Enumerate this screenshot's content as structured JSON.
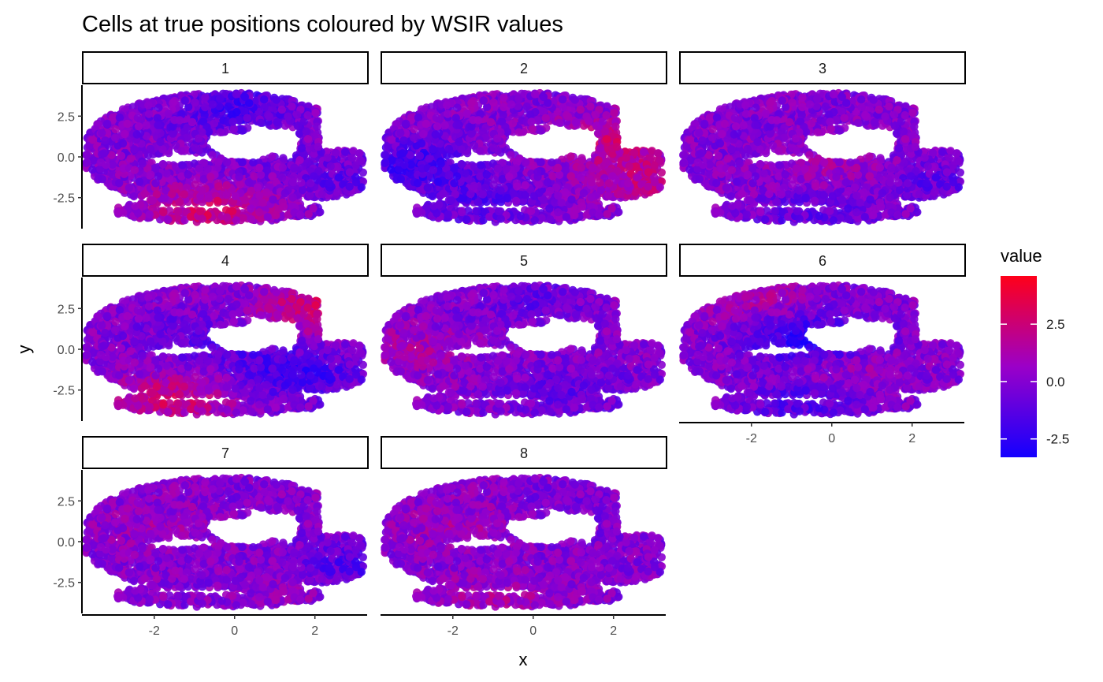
{
  "chart_data": {
    "type": "scatter",
    "title": "Cells at true positions coloured by WSIR values",
    "xlabel": "x",
    "ylabel": "y",
    "xlim": [
      -3.8,
      3.3
    ],
    "ylim": [
      -4.4,
      4.4
    ],
    "x_ticks": [
      -2,
      0,
      2
    ],
    "x_tick_labels": [
      "-2",
      "0",
      "2"
    ],
    "y_ticks": [
      -2.5,
      0,
      2.5
    ],
    "y_tick_labels": [
      "-2.5",
      "0.0",
      "2.5"
    ],
    "grid": false,
    "legend": {
      "title": "value",
      "position": "right",
      "range": [
        -3.3,
        4.6
      ],
      "ticks": [
        -2.5,
        0,
        2.5
      ],
      "tick_labels": [
        "-2.5",
        "0.0",
        "2.5"
      ],
      "low_color": "#1400ff",
      "mid_color": "#9b00c8",
      "high_color": "#ff0019"
    },
    "facets": [
      {
        "label": "1",
        "bias": [
          [
            0.0,
            3.0,
            -1.6
          ],
          [
            -0.6,
            -3.2,
            2.6
          ],
          [
            0.2,
            0.3,
            -0.5
          ],
          [
            2.8,
            -1.4,
            -1.0
          ]
        ]
      },
      {
        "label": "2",
        "bias": [
          [
            2.0,
            1.0,
            2.2
          ],
          [
            3.0,
            -1.5,
            2.0
          ],
          [
            -3.0,
            -0.5,
            -2.0
          ],
          [
            -1.5,
            -2.8,
            -1.2
          ]
        ]
      },
      {
        "label": "3",
        "bias": [
          [
            0.0,
            -0.5,
            1.0
          ],
          [
            2.5,
            -1.5,
            -1.0
          ],
          [
            -0.5,
            -3.5,
            -1.0
          ]
        ]
      },
      {
        "label": "4",
        "bias": [
          [
            -1.5,
            -3.0,
            2.5
          ],
          [
            2.0,
            2.5,
            2.5
          ],
          [
            1.5,
            -1.5,
            -2.2
          ],
          [
            -0.5,
            0.5,
            -1.2
          ]
        ]
      },
      {
        "label": "5",
        "bias": [
          [
            -3.0,
            0.0,
            1.2
          ],
          [
            1.0,
            -2.5,
            -1.0
          ],
          [
            0.0,
            3.0,
            -0.8
          ]
        ]
      },
      {
        "label": "6",
        "bias": [
          [
            -0.5,
            0.5,
            -3.2
          ],
          [
            -2.0,
            3.0,
            1.2
          ],
          [
            0.0,
            -1.0,
            1.2
          ],
          [
            -0.8,
            -3.2,
            -1.5
          ]
        ]
      },
      {
        "label": "7",
        "bias": [
          [
            -2.0,
            1.0,
            0.8
          ],
          [
            1.5,
            -3.0,
            0.6
          ],
          [
            2.8,
            -1.5,
            -1.5
          ]
        ]
      },
      {
        "label": "8",
        "bias": [
          [
            -2.0,
            1.0,
            1.0
          ],
          [
            -0.8,
            -3.5,
            1.2
          ],
          [
            1.0,
            2.0,
            -0.3
          ]
        ]
      }
    ],
    "n_points_per_facet": 2600,
    "note": "Each facet shows the same cell positions (points inside a brain-section shaped region) coloured on a blue-to-red scale by the WSIR value for that component."
  }
}
